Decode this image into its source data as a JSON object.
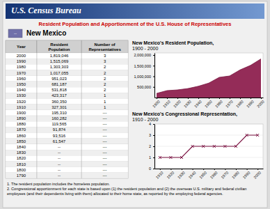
{
  "header": "U.S. Census Bureau",
  "title": "Resident Population and Apportionment of the U.S. House of Representatives",
  "state_icon_text": "--",
  "state": "New Mexico",
  "footnotes": [
    "1.  The resident population includes the homeless population.",
    "2.  Congressional apportionment for each state is based upon (1) the resident population and (2) the overseas U.S. military and federal civilian employees (and their dependents living with them) allocated to their home state, as reported by the employing federal agencies."
  ],
  "chart_data": [
    {
      "type": "table",
      "columns": [
        "Resident\nPopulation",
        "Number of\nRepresentatives"
      ],
      "first_column": "Year",
      "rows": [
        [
          2000,
          "1,819,046",
          "3"
        ],
        [
          1990,
          "1,515,069",
          "3"
        ],
        [
          1980,
          "1,303,303",
          "2"
        ],
        [
          1970,
          "1,017,055",
          "2"
        ],
        [
          1960,
          "951,023",
          "2"
        ],
        [
          1950,
          "681,187",
          "2"
        ],
        [
          1940,
          "531,818",
          "2"
        ],
        [
          1930,
          "423,317",
          "1"
        ],
        [
          1920,
          "360,350",
          "1"
        ],
        [
          1910,
          "327,301",
          "1"
        ],
        [
          1900,
          "195,310",
          "---"
        ],
        [
          1890,
          "160,282",
          "---"
        ],
        [
          1880,
          "119,565",
          "---"
        ],
        [
          1870,
          "91,874",
          "---"
        ],
        [
          1860,
          "93,516",
          "---"
        ],
        [
          1850,
          "61,547",
          "---"
        ],
        [
          1840,
          "--",
          "---"
        ],
        [
          1830,
          "--",
          "---"
        ],
        [
          1820,
          "--",
          "---"
        ],
        [
          1810,
          "--",
          "---"
        ],
        [
          1800,
          "--",
          "---"
        ],
        [
          1790,
          "--",
          "---"
        ]
      ]
    },
    {
      "type": "area",
      "title": "New Mexico's Resident Population,",
      "subtitle": "1900 - 2000",
      "x": [
        1900,
        1910,
        1920,
        1930,
        1940,
        1950,
        1960,
        1970,
        1980,
        1990,
        2000
      ],
      "values": [
        195310,
        327301,
        360350,
        423317,
        531818,
        681187,
        951023,
        1017055,
        1303303,
        1515069,
        1819046
      ],
      "color": "#8b1a4a",
      "xlim": [
        1898,
        2002
      ],
      "xticks": [
        1900,
        1910,
        1920,
        1930,
        1940,
        1950,
        1960,
        1970,
        1980,
        1990,
        2000
      ],
      "ylim": [
        0,
        2100000
      ],
      "yticks": [
        {
          "value": 500000,
          "label": "500,000"
        },
        {
          "value": 1000000,
          "label": "1,000,000"
        },
        {
          "value": 1500000,
          "label": "1,500,000"
        },
        {
          "value": 2000000,
          "label": "2,000,000"
        }
      ]
    },
    {
      "type": "line",
      "title": "New Mexico's Congressional Representation,",
      "subtitle": "1910 - 2000",
      "x": [
        1910,
        1920,
        1930,
        1940,
        1950,
        1960,
        1970,
        1980,
        1990,
        2000
      ],
      "values": [
        1,
        1,
        1,
        2,
        2,
        2,
        2,
        2,
        3,
        3
      ],
      "color": "#7a1040",
      "marker": "x",
      "xlim": [
        1905,
        2005
      ],
      "xticks": [
        1910,
        1920,
        1930,
        1940,
        1950,
        1960,
        1970,
        1980,
        1990,
        2000
      ],
      "ylim": [
        0,
        4
      ],
      "yticks": [
        0,
        1,
        2,
        3,
        4
      ],
      "grid": true
    }
  ]
}
